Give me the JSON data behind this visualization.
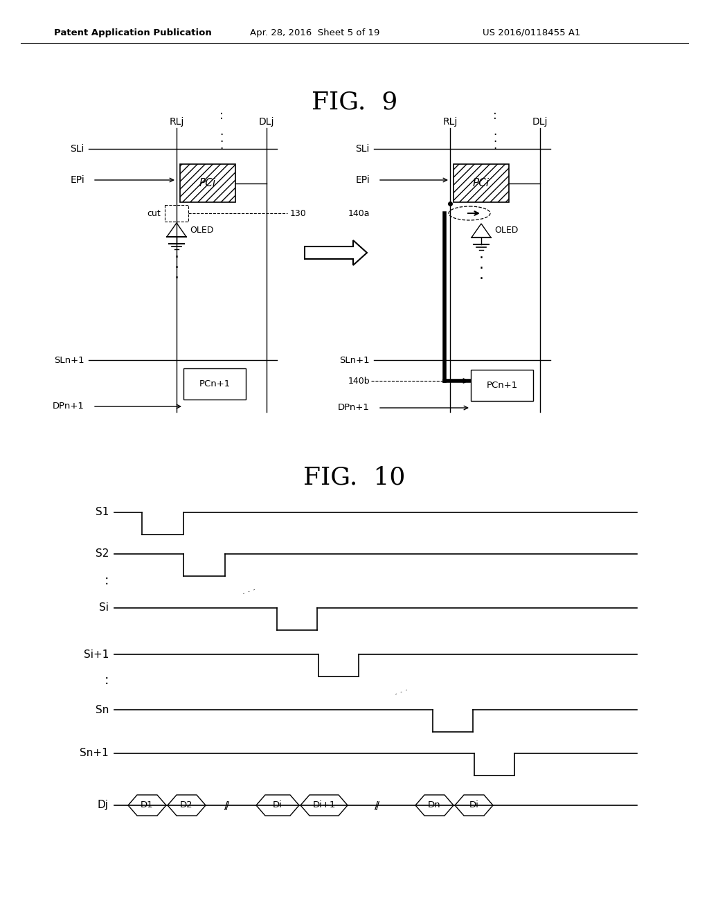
{
  "title_fig9": "FIG.  9",
  "title_fig10": "FIG.  10",
  "header_left": "Patent Application Publication",
  "header_mid": "Apr. 28, 2016  Sheet 5 of 19",
  "header_right": "US 2016/0118455 A1",
  "bg_color": "#ffffff",
  "line_color": "#000000",
  "timing_labels": [
    "S1",
    "S2",
    "Si",
    "Si+1",
    "Sn",
    "Sn+1"
  ],
  "dj_label": "Dj",
  "dj_boxes": [
    "D1",
    "D2",
    "Di",
    "Di+1",
    "Dn",
    "Di"
  ]
}
